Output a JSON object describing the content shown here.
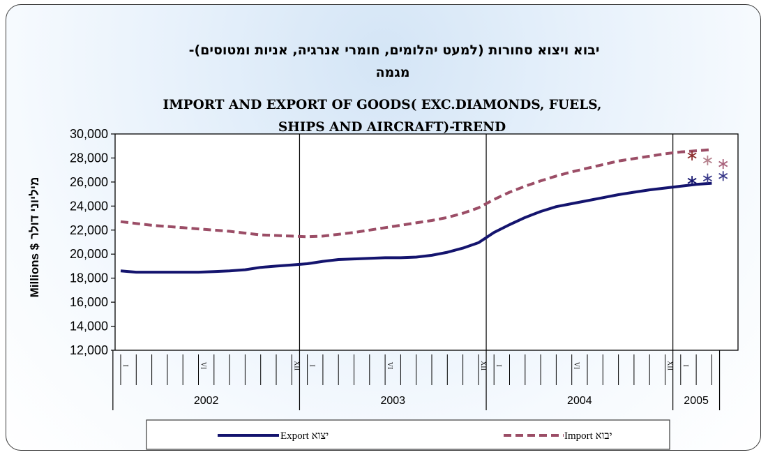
{
  "chart_data": {
    "type": "line",
    "title_hebrew_line1": "יבוא ויצוא סחורות (למעט יהלומים, חומרי אנרגיה, אניות ומטוסים)-",
    "title_hebrew_line2": "מגמה",
    "title_english_line1": "IMPORT AND EXPORT OF GOODS( EXC.DIAMONDS, FUELS,",
    "title_english_line2": "SHIPS AND AIRCRAFT)-TREND",
    "ylabel_english": "Millions $",
    "ylabel_hebrew": "מיליוני דולר",
    "ylim": [
      12000,
      30000
    ],
    "yticks": [
      "12,000",
      "14,000",
      "16,000",
      "18,000",
      "20,000",
      "22,000",
      "24,000",
      "26,000",
      "28,000",
      "30,000"
    ],
    "years": [
      {
        "label": "2002",
        "months": 12
      },
      {
        "label": "2003",
        "months": 12
      },
      {
        "label": "2004",
        "months": 12
      },
      {
        "label": "2005",
        "months": 3
      }
    ],
    "month_markers": [
      {
        "month_index": 0,
        "label": "I"
      },
      {
        "month_index": 5,
        "label": "VI"
      },
      {
        "month_index": 11,
        "label": "XII"
      },
      {
        "month_index": 12,
        "label": "I"
      },
      {
        "month_index": 17,
        "label": "VI"
      },
      {
        "month_index": 23,
        "label": "XII"
      },
      {
        "month_index": 24,
        "label": "I"
      },
      {
        "month_index": 29,
        "label": "VI"
      },
      {
        "month_index": 35,
        "label": "XII"
      },
      {
        "month_index": 36,
        "label": "I"
      }
    ],
    "series": [
      {
        "name": "Export יצוא",
        "color": "#14146e",
        "style": "solid",
        "values": [
          18600,
          18500,
          18500,
          18500,
          18500,
          18500,
          18550,
          18600,
          18700,
          18900,
          19000,
          19100,
          19200,
          19400,
          19550,
          19600,
          19650,
          19700,
          19700,
          19750,
          19900,
          20150,
          20500,
          20950,
          21800,
          22450,
          23050,
          23550,
          23950,
          24200,
          24450,
          24700,
          24950,
          25150,
          25350,
          25500,
          25650,
          25800,
          25900
        ],
        "forecast": [
          26100,
          26300,
          26500
        ]
      },
      {
        "name": "Import יבוא",
        "color": "#9b4d66",
        "style": "dashed",
        "values": [
          22700,
          22550,
          22400,
          22300,
          22200,
          22100,
          22000,
          21900,
          21750,
          21600,
          21550,
          21500,
          21450,
          21500,
          21650,
          21800,
          22000,
          22200,
          22400,
          22600,
          22800,
          23050,
          23400,
          23850,
          24550,
          25150,
          25650,
          26100,
          26500,
          26850,
          27150,
          27450,
          27750,
          27950,
          28150,
          28350,
          28500,
          28600,
          28700
        ],
        "forecast": [
          28200,
          27800,
          27500
        ]
      }
    ],
    "forecast_colors": {
      "import": [
        "#8c2e2e",
        "#b5808c",
        "#a8607a"
      ],
      "export": [
        "#14146e",
        "#3a3a8a",
        "#3a3a8a"
      ]
    },
    "legend_placement": "bottom",
    "grid": "vertical lines at year boundaries"
  }
}
